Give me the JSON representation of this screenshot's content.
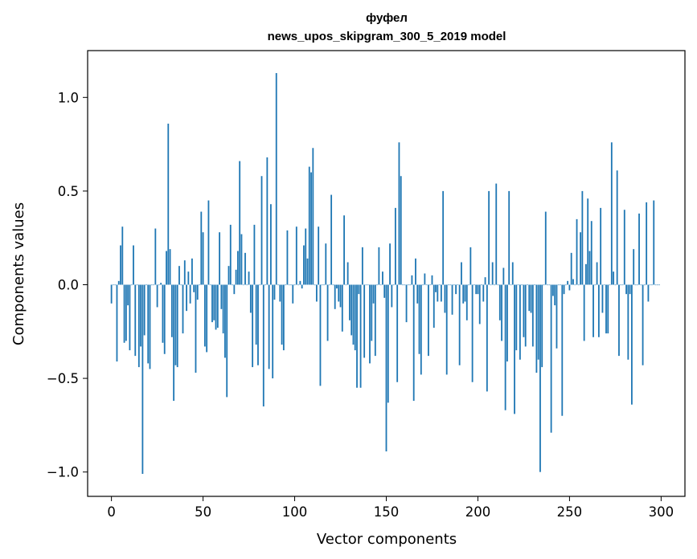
{
  "chart_data": {
    "type": "bar",
    "title_line1": "фуфел",
    "title_line2": "news_upos_skipgram_300_5_2019 model",
    "xlabel": "Vector components",
    "ylabel": "Components values",
    "xlim": [
      -13,
      313
    ],
    "ylim": [
      -1.13,
      1.25
    ],
    "x_ticks": [
      0,
      50,
      100,
      150,
      200,
      250,
      300
    ],
    "x_tick_labels": [
      "0",
      "50",
      "100",
      "150",
      "200",
      "250",
      "300"
    ],
    "y_ticks": [
      -1.0,
      -0.5,
      0.0,
      0.5,
      1.0
    ],
    "y_tick_labels": [
      "−1.0",
      "−0.5",
      "0.0",
      "0.5",
      "1.0"
    ],
    "bar_color": "#1f77b4",
    "values": [
      -0.1,
      0.0,
      0.0,
      -0.41,
      0.02,
      0.21,
      0.31,
      -0.31,
      -0.3,
      -0.11,
      -0.35,
      0.0,
      0.21,
      -0.38,
      0.0,
      -0.44,
      -0.33,
      -1.01,
      -0.27,
      0.0,
      -0.42,
      -0.45,
      0.0,
      0.0,
      0.3,
      -0.12,
      0.0,
      0.01,
      -0.31,
      -0.37,
      0.18,
      0.86,
      0.19,
      -0.28,
      -0.62,
      -0.43,
      -0.44,
      0.1,
      0.0,
      -0.26,
      0.13,
      -0.14,
      0.07,
      -0.1,
      0.14,
      -0.04,
      -0.47,
      -0.08,
      0.0,
      0.39,
      0.28,
      -0.33,
      -0.36,
      0.45,
      0.0,
      -0.2,
      -0.19,
      -0.24,
      -0.23,
      0.28,
      -0.13,
      -0.26,
      -0.39,
      -0.6,
      0.1,
      0.32,
      0.0,
      -0.05,
      0.08,
      0.18,
      0.66,
      0.27,
      0.0,
      0.17,
      0.0,
      0.07,
      -0.15,
      -0.44,
      0.32,
      -0.32,
      -0.43,
      0.0,
      0.58,
      -0.65,
      0.0,
      0.68,
      -0.45,
      0.43,
      -0.5,
      -0.08,
      1.13,
      0.0,
      -0.09,
      -0.32,
      -0.35,
      0.0,
      0.29,
      0.0,
      0.0,
      -0.1,
      0.0,
      0.31,
      0.0,
      0.02,
      -0.02,
      0.21,
      0.3,
      0.14,
      0.63,
      0.6,
      0.73,
      0.0,
      -0.09,
      0.31,
      -0.54,
      0.0,
      0.0,
      0.22,
      -0.3,
      0.0,
      0.48,
      0.0,
      -0.13,
      -0.02,
      -0.09,
      -0.12,
      -0.25,
      0.37,
      0.0,
      0.12,
      -0.19,
      -0.27,
      -0.32,
      -0.35,
      -0.55,
      -0.05,
      -0.55,
      0.2,
      -0.39,
      0.0,
      0.0,
      -0.42,
      -0.3,
      -0.1,
      -0.38,
      0.0,
      0.2,
      0.0,
      0.07,
      -0.07,
      -0.89,
      -0.63,
      0.22,
      -0.12,
      0.0,
      0.41,
      -0.52,
      0.76,
      0.58,
      0.0,
      0.0,
      -0.2,
      0.0,
      0.0,
      0.05,
      -0.62,
      0.14,
      -0.1,
      -0.37,
      -0.48,
      0.0,
      0.06,
      0.0,
      -0.38,
      0.0,
      0.05,
      -0.23,
      -0.04,
      -0.09,
      0.0,
      -0.09,
      0.5,
      -0.15,
      -0.48,
      0.0,
      0.0,
      -0.16,
      0.0,
      -0.05,
      0.0,
      -0.43,
      0.12,
      -0.1,
      -0.09,
      -0.19,
      0.0,
      0.2,
      -0.52,
      0.0,
      -0.05,
      -0.05,
      -0.21,
      0.0,
      -0.09,
      0.04,
      -0.57,
      0.5,
      0.0,
      0.12,
      0.0,
      0.54,
      0.0,
      -0.19,
      -0.3,
      0.09,
      -0.67,
      -0.41,
      0.5,
      0.0,
      0.12,
      -0.69,
      -0.35,
      0.0,
      -0.4,
      0.0,
      -0.28,
      -0.33,
      0.0,
      -0.14,
      -0.15,
      -0.33,
      0.0,
      -0.47,
      -0.4,
      -1.0,
      -0.44,
      0.0,
      0.39,
      0.0,
      0.0,
      -0.79,
      -0.06,
      -0.11,
      -0.34,
      0.0,
      0.0,
      -0.7,
      -0.05,
      0.0,
      0.02,
      -0.03,
      0.17,
      0.03,
      0.0,
      0.35,
      0.0,
      0.28,
      0.5,
      -0.3,
      0.11,
      0.46,
      0.18,
      0.34,
      -0.28,
      0.0,
      0.12,
      -0.28,
      0.41,
      -0.15,
      0.0,
      -0.26,
      -0.26,
      0.0,
      0.76,
      0.07,
      0.0,
      0.61,
      -0.38,
      0.0,
      0.0,
      0.4,
      -0.05,
      -0.4,
      -0.05,
      -0.64,
      0.19,
      0.0,
      0.0,
      0.38,
      0.0,
      -0.43,
      0.0,
      0.44,
      -0.09,
      0.0,
      0.0,
      0.45,
      0.0,
      0.0,
      0.0
    ]
  }
}
